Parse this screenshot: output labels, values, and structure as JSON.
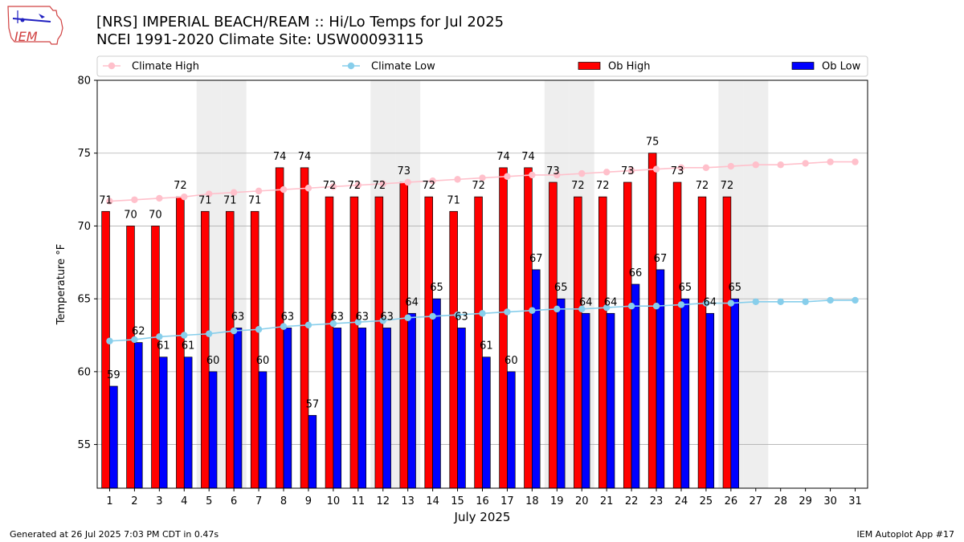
{
  "header": {
    "title_line1": "[NRS] IMPERIAL BEACH/REAM :: Hi/Lo Temps for Jul 2025",
    "title_line2": "NCEI 1991-2020 Climate Site: USW00093115",
    "logo_text": "IEM"
  },
  "footer": {
    "generated": "Generated at 26 Jul 2025 7:03 PM CDT in 0.47s",
    "app": "IEM Autoplot App #17"
  },
  "colors": {
    "ob_high": "#ff0000",
    "ob_low": "#0000ff",
    "climate_high": "#ffc0cb",
    "climate_low": "#87ceeb",
    "weekend_shade": "#eeeeee",
    "grid": "#b0b0b0"
  },
  "chart_data": {
    "type": "bar",
    "xlabel": "July 2025",
    "ylabel": "Temperature °F",
    "ylim": [
      52,
      80
    ],
    "yticks": [
      55,
      60,
      65,
      70,
      75,
      80
    ],
    "grid": "horizontal",
    "legend_placement": "top",
    "categories": [
      "1",
      "2",
      "3",
      "4",
      "5",
      "6",
      "7",
      "8",
      "9",
      "10",
      "11",
      "12",
      "13",
      "14",
      "15",
      "16",
      "17",
      "18",
      "19",
      "20",
      "21",
      "22",
      "23",
      "24",
      "25",
      "26",
      "27",
      "28",
      "29",
      "30",
      "31"
    ],
    "weekend_days": [
      5,
      6,
      12,
      13,
      19,
      20,
      26,
      27
    ],
    "series": [
      {
        "name": "Climate High",
        "kind": "line",
        "values": [
          71.7,
          71.8,
          71.9,
          72.0,
          72.2,
          72.3,
          72.4,
          72.5,
          72.6,
          72.7,
          72.8,
          72.9,
          73.0,
          73.1,
          73.2,
          73.3,
          73.4,
          73.5,
          73.5,
          73.6,
          73.7,
          73.8,
          73.9,
          74.0,
          74.0,
          74.1,
          74.2,
          74.2,
          74.3,
          74.4,
          74.4
        ]
      },
      {
        "name": "Climate Low",
        "kind": "line",
        "values": [
          62.1,
          62.2,
          62.4,
          62.5,
          62.6,
          62.8,
          62.9,
          63.1,
          63.2,
          63.3,
          63.4,
          63.5,
          63.7,
          63.8,
          63.9,
          64.0,
          64.1,
          64.2,
          64.3,
          64.3,
          64.4,
          64.5,
          64.5,
          64.6,
          64.7,
          64.7,
          64.8,
          64.8,
          64.8,
          64.9,
          64.9
        ]
      },
      {
        "name": "Ob High",
        "kind": "bar",
        "values": [
          71,
          70,
          70,
          72,
          71,
          71,
          71,
          74,
          74,
          72,
          72,
          72,
          73,
          72,
          71,
          72,
          74,
          74,
          73,
          72,
          72,
          73,
          75,
          73,
          72,
          72,
          null,
          null,
          null,
          null,
          null
        ]
      },
      {
        "name": "Ob Low",
        "kind": "bar",
        "values": [
          59,
          62,
          61,
          61,
          60,
          63,
          60,
          63,
          57,
          63,
          63,
          63,
          64,
          65,
          63,
          61,
          60,
          67,
          65,
          64,
          64,
          66,
          67,
          65,
          64,
          65,
          null,
          null,
          null,
          null,
          null
        ]
      }
    ]
  }
}
